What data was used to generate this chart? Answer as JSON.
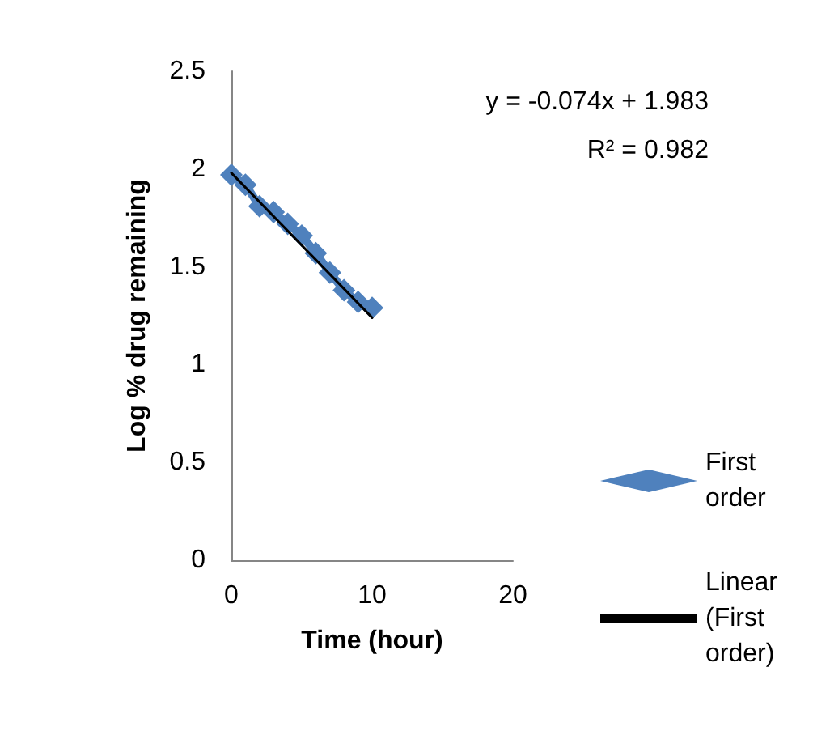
{
  "chart_data": {
    "type": "line",
    "xlabel": "Time (hour)",
    "ylabel": "Log % drug remaining",
    "series": [
      {
        "name": "First order",
        "color": "#4f81bd",
        "marker": "diamond",
        "x": [
          0,
          1,
          2,
          3,
          4,
          5,
          6,
          7,
          8,
          9,
          10
        ],
        "values": [
          1.97,
          1.92,
          1.81,
          1.78,
          1.72,
          1.66,
          1.57,
          1.47,
          1.38,
          1.32,
          1.29
        ]
      },
      {
        "name": "Linear (First order)",
        "color": "#000000",
        "marker": "none",
        "x": [
          0,
          10
        ],
        "values": [
          1.98,
          1.24
        ]
      }
    ],
    "annotations": [
      "y = -0.074x + 1.983",
      "R² = 0.982"
    ],
    "xlim": [
      0,
      20
    ],
    "xticks": [
      0,
      10,
      20
    ],
    "ylim": [
      0,
      2.5
    ],
    "yticks": [
      0,
      0.5,
      1,
      1.5,
      2,
      2.5
    ],
    "grid": false,
    "legend": "right"
  }
}
